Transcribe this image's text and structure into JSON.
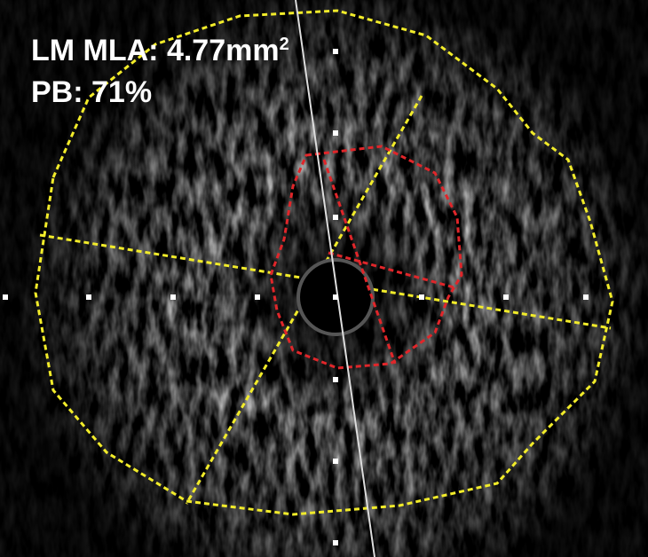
{
  "annotations": {
    "mla": "LM MLA: 4.77mm",
    "mla_sup": "2",
    "pb": "PB: 71%"
  }
}
